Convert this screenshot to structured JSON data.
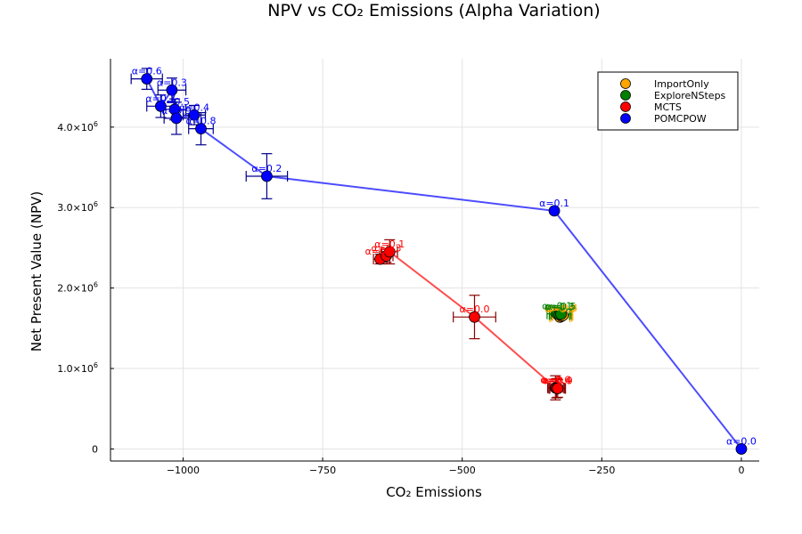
{
  "chart_data": {
    "type": "scatter",
    "title": "NPV vs CO₂ Emissions (Alpha Variation)",
    "xlabel": "CO₂ Emissions",
    "ylabel": "Net Present Value (NPV)",
    "xlim": [
      -1130,
      32
    ],
    "ylim": [
      -150000,
      4850000
    ],
    "xticks": [
      {
        "value": -1000,
        "label": "−1000"
      },
      {
        "value": -750,
        "label": "−750"
      },
      {
        "value": -500,
        "label": "−500"
      },
      {
        "value": -250,
        "label": "−250"
      },
      {
        "value": 0,
        "label": "0"
      }
    ],
    "yticks": [
      {
        "value": 0,
        "mant": "0",
        "exp": ""
      },
      {
        "value": 1000000,
        "mant": "1.0×10",
        "exp": "6"
      },
      {
        "value": 2000000,
        "mant": "2.0×10",
        "exp": "6"
      },
      {
        "value": 3000000,
        "mant": "3.0×10",
        "exp": "6"
      },
      {
        "value": 4000000,
        "mant": "4.0×10",
        "exp": "6"
      }
    ],
    "grid": true,
    "legend_position": "top-right",
    "series": [
      {
        "name": "ImportOnly",
        "color": "#FFA500",
        "connect": false,
        "points": [
          {
            "x": -325,
            "y": 1640000,
            "xerr": 18,
            "yerr": 30000,
            "label": "α=0.8"
          },
          {
            "x": -322,
            "y": 1650000,
            "xerr": 18,
            "yerr": 30000,
            "label": "α=0.6"
          },
          {
            "x": -320,
            "y": 1660000,
            "xerr": 18,
            "yerr": 30000,
            "label": "α=0.4"
          }
        ]
      },
      {
        "name": "ExploreNSteps",
        "color": "#008000",
        "connect": false,
        "points": [
          {
            "x": -330,
            "y": 1680000,
            "xerr": 18,
            "yerr": 30000,
            "label": "α=0.1"
          },
          {
            "x": -326,
            "y": 1670000,
            "xerr": 18,
            "yerr": 30000,
            "label": "α=0.3"
          },
          {
            "x": -323,
            "y": 1675000,
            "xerr": 18,
            "yerr": 30000,
            "label": "α=0.5"
          }
        ]
      },
      {
        "name": "MCTS",
        "color": "#FF0000",
        "connect": true,
        "points": [
          {
            "x": -647.0,
            "y": 2360000,
            "xerr": 12,
            "yerr": 60000,
            "label": "α=0.8"
          },
          {
            "x": -636,
            "y": 2400000,
            "xerr": 12,
            "yerr": 80000,
            "label": "α=0.3"
          },
          {
            "x": -630,
            "y": 2450000,
            "xerr": 14,
            "yerr": 150000,
            "label": "α=0.1"
          },
          {
            "x": -478,
            "y": 1640000,
            "xerr": 38,
            "yerr": 270000,
            "label": "α=0.0"
          },
          {
            "x": -333,
            "y": 760000,
            "xerr": 14,
            "yerr": 150000,
            "label": "α=0.6"
          },
          {
            "x": -331,
            "y": 755000,
            "xerr": 14,
            "yerr": 120000,
            "label": "α=0.4"
          },
          {
            "x": -329,
            "y": 752000,
            "xerr": 14,
            "yerr": 110000,
            "label": "α=0.9"
          }
        ]
      },
      {
        "name": "POMCPOW",
        "color": "#0000FF",
        "connect": true,
        "points": [
          {
            "x": 0,
            "y": 0,
            "xerr": 0,
            "yerr": 0,
            "label": "α=0.0"
          },
          {
            "x": -335,
            "y": 2960000,
            "xerr": 0,
            "yerr": 0,
            "label": "α=0.1"
          },
          {
            "x": -850,
            "y": 3390000,
            "xerr": 37,
            "yerr": 280000,
            "label": "α=0.2"
          },
          {
            "x": -1020,
            "y": 4460000,
            "xerr": 25,
            "yerr": 150000,
            "label": "α=0.3"
          },
          {
            "x": -980,
            "y": 4150000,
            "xerr": 20,
            "yerr": 120000,
            "label": "α=0.4"
          },
          {
            "x": -1015,
            "y": 4220000,
            "xerr": 20,
            "yerr": 130000,
            "label": "α=0.5"
          },
          {
            "x": -1065,
            "y": 4600000,
            "xerr": 28,
            "yerr": 130000,
            "label": "α=0.6"
          },
          {
            "x": -1040,
            "y": 4260000,
            "xerr": 25,
            "yerr": 140000,
            "label": "α=0.7"
          },
          {
            "x": -968,
            "y": 3980000,
            "xerr": 22,
            "yerr": 200000,
            "label": "α=0.8"
          },
          {
            "x": -1012,
            "y": 4110000,
            "xerr": 22,
            "yerr": 200000,
            "label": "α=0.9"
          }
        ]
      }
    ]
  }
}
